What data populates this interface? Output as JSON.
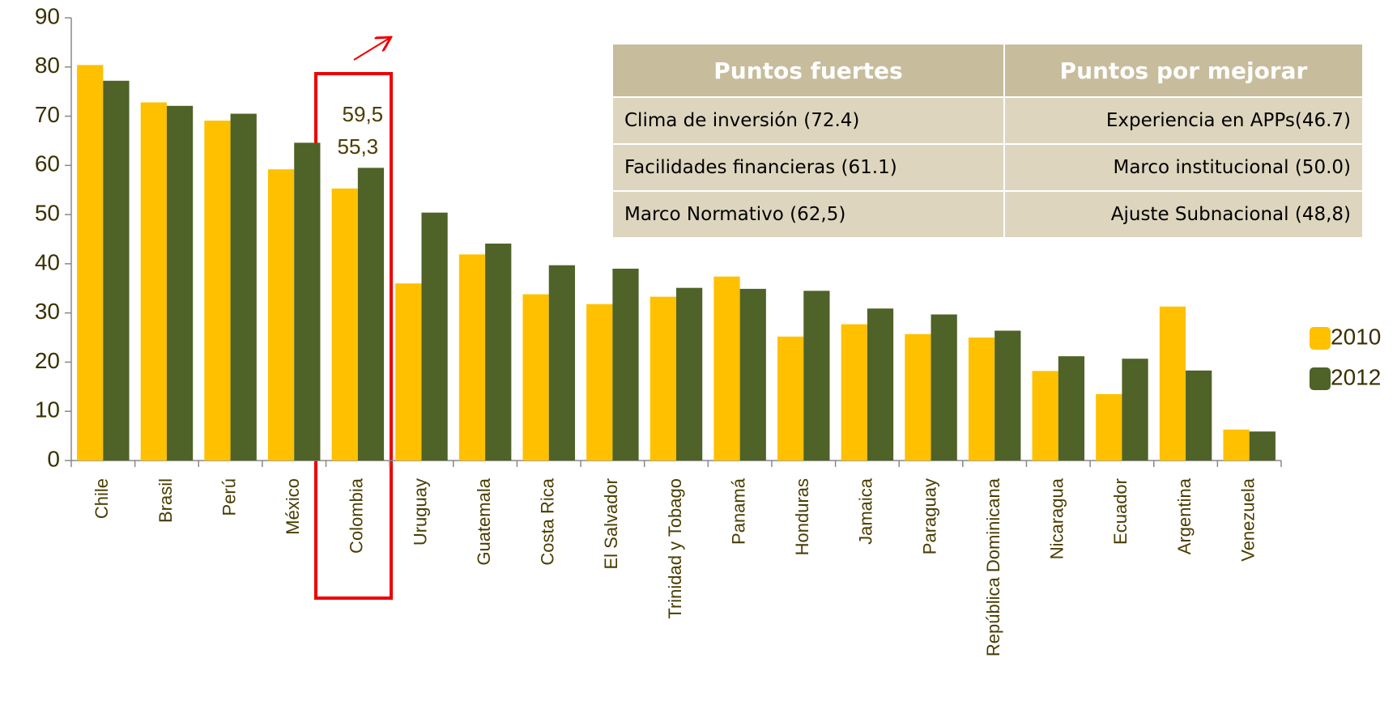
{
  "chart_data": {
    "type": "bar",
    "categories": [
      "Chile",
      "Brasil",
      "Perú",
      "México",
      "Colombia",
      "Uruguay",
      "Guatemala",
      "Costa Rica",
      "El Salvador",
      "Trinidad y Tobago",
      "Panamá",
      "Honduras",
      "Jamaica",
      "Paraguay",
      "República Dominicana",
      "Nicaragua",
      "Ecuador",
      "Argentina",
      "Venezuela"
    ],
    "series": [
      {
        "name": "2010",
        "color": "#FFC000",
        "values": [
          80.4,
          72.8,
          69.1,
          59.2,
          55.3,
          36.0,
          41.9,
          33.8,
          31.8,
          33.3,
          37.4,
          25.2,
          27.7,
          25.7,
          25.0,
          18.2,
          13.5,
          31.3,
          6.3
        ],
        "value_labels": [
          null,
          null,
          null,
          null,
          "55,3",
          null,
          null,
          null,
          null,
          null,
          null,
          null,
          null,
          null,
          null,
          null,
          null,
          null,
          null
        ]
      },
      {
        "name": "2012",
        "color": "#4F6228",
        "values": [
          77.2,
          72.1,
          70.5,
          64.6,
          59.5,
          50.4,
          44.1,
          39.7,
          39.0,
          35.1,
          34.9,
          34.5,
          30.9,
          29.7,
          26.4,
          21.2,
          20.7,
          18.3,
          5.9
        ],
        "value_labels": [
          null,
          null,
          null,
          null,
          "59,5",
          null,
          null,
          null,
          null,
          null,
          null,
          null,
          null,
          null,
          null,
          null,
          null,
          null,
          null
        ]
      }
    ],
    "ylim": [
      0,
      90
    ],
    "yticks": [
      0,
      10,
      20,
      30,
      40,
      50,
      60,
      70,
      80,
      90
    ],
    "grid": false,
    "legend": "right"
  },
  "table": {
    "headers": [
      "Puntos fuertes",
      "Puntos por mejorar"
    ],
    "rows": [
      [
        "Clima de inversión (72.4)",
        "Experiencia en APPs(46.7)"
      ],
      [
        "Facilidades financieras  (61.1)",
        "Marco institucional (50.0)"
      ],
      [
        "Marco Normativo (62,5)",
        "Ajuste Subnacional (48,8)"
      ]
    ]
  }
}
